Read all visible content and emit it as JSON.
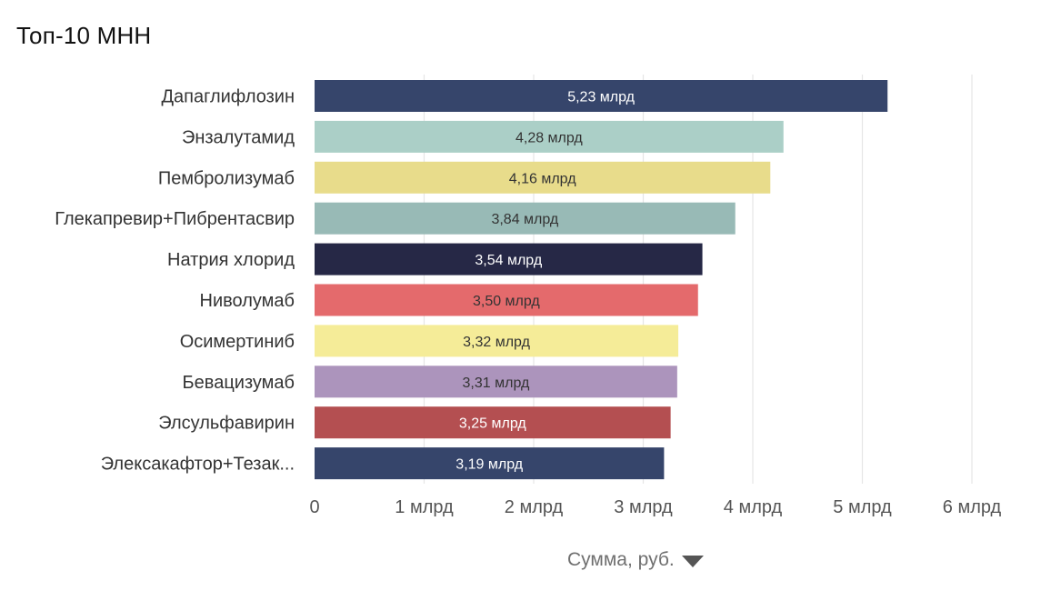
{
  "chart_data": {
    "type": "bar",
    "orientation": "horizontal",
    "title": "Топ-10 МНН",
    "categories": [
      "Дапаглифлозин",
      "Энзалутамид",
      "Пембролизумаб",
      "Глекапревир+Пибрентасвир",
      "Натрия хлорид",
      "Ниволумаб",
      "Осимертиниб",
      "Бевацизумаб",
      "Элсульфавирин",
      "Элексакафтор+Тезак..."
    ],
    "values": [
      5.23,
      4.28,
      4.16,
      3.84,
      3.54,
      3.5,
      3.32,
      3.31,
      3.25,
      3.19
    ],
    "value_labels": [
      "5,23 млрд",
      "4,28 млрд",
      "4,16 млрд",
      "3,84 млрд",
      "3,54 млрд",
      "3,50 млрд",
      "3,32 млрд",
      "3,31 млрд",
      "3,25 млрд",
      "3,19 млрд"
    ],
    "bar_colors": [
      "#36456b",
      "#abcfc7",
      "#e8dc8b",
      "#98bab6",
      "#262846",
      "#e46a6c",
      "#f5ec98",
      "#ac94bc",
      "#b44f51",
      "#36456b"
    ],
    "label_colors": [
      "#ffffff",
      "#333333",
      "#333333",
      "#333333",
      "#ffffff",
      "#333333",
      "#333333",
      "#333333",
      "#ffffff",
      "#ffffff"
    ],
    "x_ticks": [
      0,
      1,
      2,
      3,
      4,
      5,
      6
    ],
    "x_tick_labels": [
      "0",
      "1 млрд",
      "2 млрд",
      "3 млрд",
      "4 млрд",
      "5 млрд",
      "6 млрд"
    ],
    "xlim": [
      0,
      6
    ],
    "xlabel": "Сумма, руб.",
    "grid": true
  }
}
